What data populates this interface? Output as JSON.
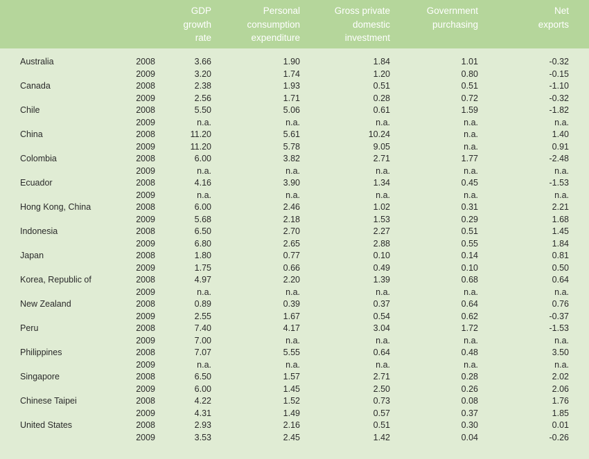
{
  "headers": {
    "gdp": [
      "GDP",
      "growth",
      "rate"
    ],
    "pce": [
      "Personal",
      "consumption",
      "expenditure"
    ],
    "gpi": [
      "Gross private",
      "domestic",
      "investment"
    ],
    "gov": [
      "Government",
      "purchasing"
    ],
    "net": [
      "Net",
      "exports"
    ]
  },
  "rows": [
    {
      "country": "Australia",
      "year": "2008",
      "gdp": "3.66",
      "pce": "1.90",
      "gpi": "1.84",
      "gov": "1.01",
      "net": "-0.32"
    },
    {
      "country": "",
      "year": "2009",
      "gdp": "3.20",
      "pce": "1.74",
      "gpi": "1.20",
      "gov": "0.80",
      "net": "-0.15"
    },
    {
      "country": "Canada",
      "year": "2008",
      "gdp": "2.38",
      "pce": "1.93",
      "gpi": "0.51",
      "gov": "0.51",
      "net": "-1.10"
    },
    {
      "country": "",
      "year": "2009",
      "gdp": "2.56",
      "pce": "1.71",
      "gpi": "0.28",
      "gov": "0.72",
      "net": "-0.32"
    },
    {
      "country": "Chile",
      "year": "2008",
      "gdp": "5.50",
      "pce": "5.06",
      "gpi": "0.61",
      "gov": "1.59",
      "net": "-1.82"
    },
    {
      "country": "",
      "year": "2009",
      "gdp": "n.a.",
      "pce": "n.a.",
      "gpi": "n.a.",
      "gov": "n.a.",
      "net": "n.a."
    },
    {
      "country": "China",
      "year": "2008",
      "gdp": "11.20",
      "pce": "5.61",
      "gpi": "10.24",
      "gov": "n.a.",
      "net": "1.40"
    },
    {
      "country": "",
      "year": "2009",
      "gdp": "11.20",
      "pce": "5.78",
      "gpi": "9.05",
      "gov": "n.a.",
      "net": "0.91"
    },
    {
      "country": "Colombia",
      "year": "2008",
      "gdp": "6.00",
      "pce": "3.82",
      "gpi": "2.71",
      "gov": "1.77",
      "net": "-2.48"
    },
    {
      "country": "",
      "year": "2009",
      "gdp": "n.a.",
      "pce": "n.a.",
      "gpi": "n.a.",
      "gov": "n.a.",
      "net": "n.a."
    },
    {
      "country": "Ecuador",
      "year": "2008",
      "gdp": "4.16",
      "pce": "3.90",
      "gpi": "1.34",
      "gov": "0.45",
      "net": "-1.53"
    },
    {
      "country": "",
      "year": "2009",
      "gdp": "n.a.",
      "pce": "n.a.",
      "gpi": "n.a.",
      "gov": "n.a.",
      "net": "n.a."
    },
    {
      "country": "Hong Kong, China",
      "year": "2008",
      "gdp": "6.00",
      "pce": "2.46",
      "gpi": "1.02",
      "gov": "0.31",
      "net": "2.21"
    },
    {
      "country": "",
      "year": "2009",
      "gdp": "5.68",
      "pce": "2.18",
      "gpi": "1.53",
      "gov": "0.29",
      "net": "1.68"
    },
    {
      "country": "Indonesia",
      "year": "2008",
      "gdp": "6.50",
      "pce": "2.70",
      "gpi": "2.27",
      "gov": "0.51",
      "net": "1.45"
    },
    {
      "country": "",
      "year": "2009",
      "gdp": "6.80",
      "pce": "2.65",
      "gpi": "2.88",
      "gov": "0.55",
      "net": "1.84"
    },
    {
      "country": "Japan",
      "year": "2008",
      "gdp": "1.80",
      "pce": "0.77",
      "gpi": "0.10",
      "gov": "0.14",
      "net": "0.81"
    },
    {
      "country": "",
      "year": "2009",
      "gdp": "1.75",
      "pce": "0.66",
      "gpi": "0.49",
      "gov": "0.10",
      "net": "0.50"
    },
    {
      "country": "Korea, Republic of",
      "year": "2008",
      "gdp": "4.97",
      "pce": "2.20",
      "gpi": "1.39",
      "gov": "0.68",
      "net": "0.64"
    },
    {
      "country": "",
      "year": "2009",
      "gdp": "n.a.",
      "pce": "n.a.",
      "gpi": "n.a.",
      "gov": "n.a.",
      "net": "n.a."
    },
    {
      "country": "New Zealand",
      "year": "2008",
      "gdp": "0.89",
      "pce": "0.39",
      "gpi": "0.37",
      "gov": "0.64",
      "net": "0.76"
    },
    {
      "country": "",
      "year": "2009",
      "gdp": "2.55",
      "pce": "1.67",
      "gpi": "0.54",
      "gov": "0.62",
      "net": "-0.37"
    },
    {
      "country": "Peru",
      "year": "2008",
      "gdp": "7.40",
      "pce": "4.17",
      "gpi": "3.04",
      "gov": "1.72",
      "net": "-1.53"
    },
    {
      "country": "",
      "year": "2009",
      "gdp": "7.00",
      "pce": "n.a.",
      "gpi": "n.a.",
      "gov": "n.a.",
      "net": "n.a."
    },
    {
      "country": "Philippines",
      "year": "2008",
      "gdp": "7.07",
      "pce": "5.55",
      "gpi": "0.64",
      "gov": "0.48",
      "net": "3.50"
    },
    {
      "country": "",
      "year": "2009",
      "gdp": "n.a.",
      "pce": "n.a.",
      "gpi": "n.a.",
      "gov": "n.a.",
      "net": "n.a."
    },
    {
      "country": "Singapore",
      "year": "2008",
      "gdp": "6.50",
      "pce": "1.57",
      "gpi": "2.71",
      "gov": "0.28",
      "net": "2.02"
    },
    {
      "country": "",
      "year": "2009",
      "gdp": "6.00",
      "pce": "1.45",
      "gpi": "2.50",
      "gov": "0.26",
      "net": "2.06"
    },
    {
      "country": "Chinese Taipei",
      "year": "2008",
      "gdp": "4.22",
      "pce": "1.52",
      "gpi": "0.73",
      "gov": "0.08",
      "net": "1.76"
    },
    {
      "country": "",
      "year": "2009",
      "gdp": "4.31",
      "pce": "1.49",
      "gpi": "0.57",
      "gov": "0.37",
      "net": "1.85"
    },
    {
      "country": "United States",
      "year": "2008",
      "gdp": "2.93",
      "pce": "2.16",
      "gpi": "0.51",
      "gov": "0.30",
      "net": "0.01"
    },
    {
      "country": "",
      "year": "2009",
      "gdp": "3.53",
      "pce": "2.45",
      "gpi": "1.42",
      "gov": "0.04",
      "net": "-0.26"
    }
  ]
}
